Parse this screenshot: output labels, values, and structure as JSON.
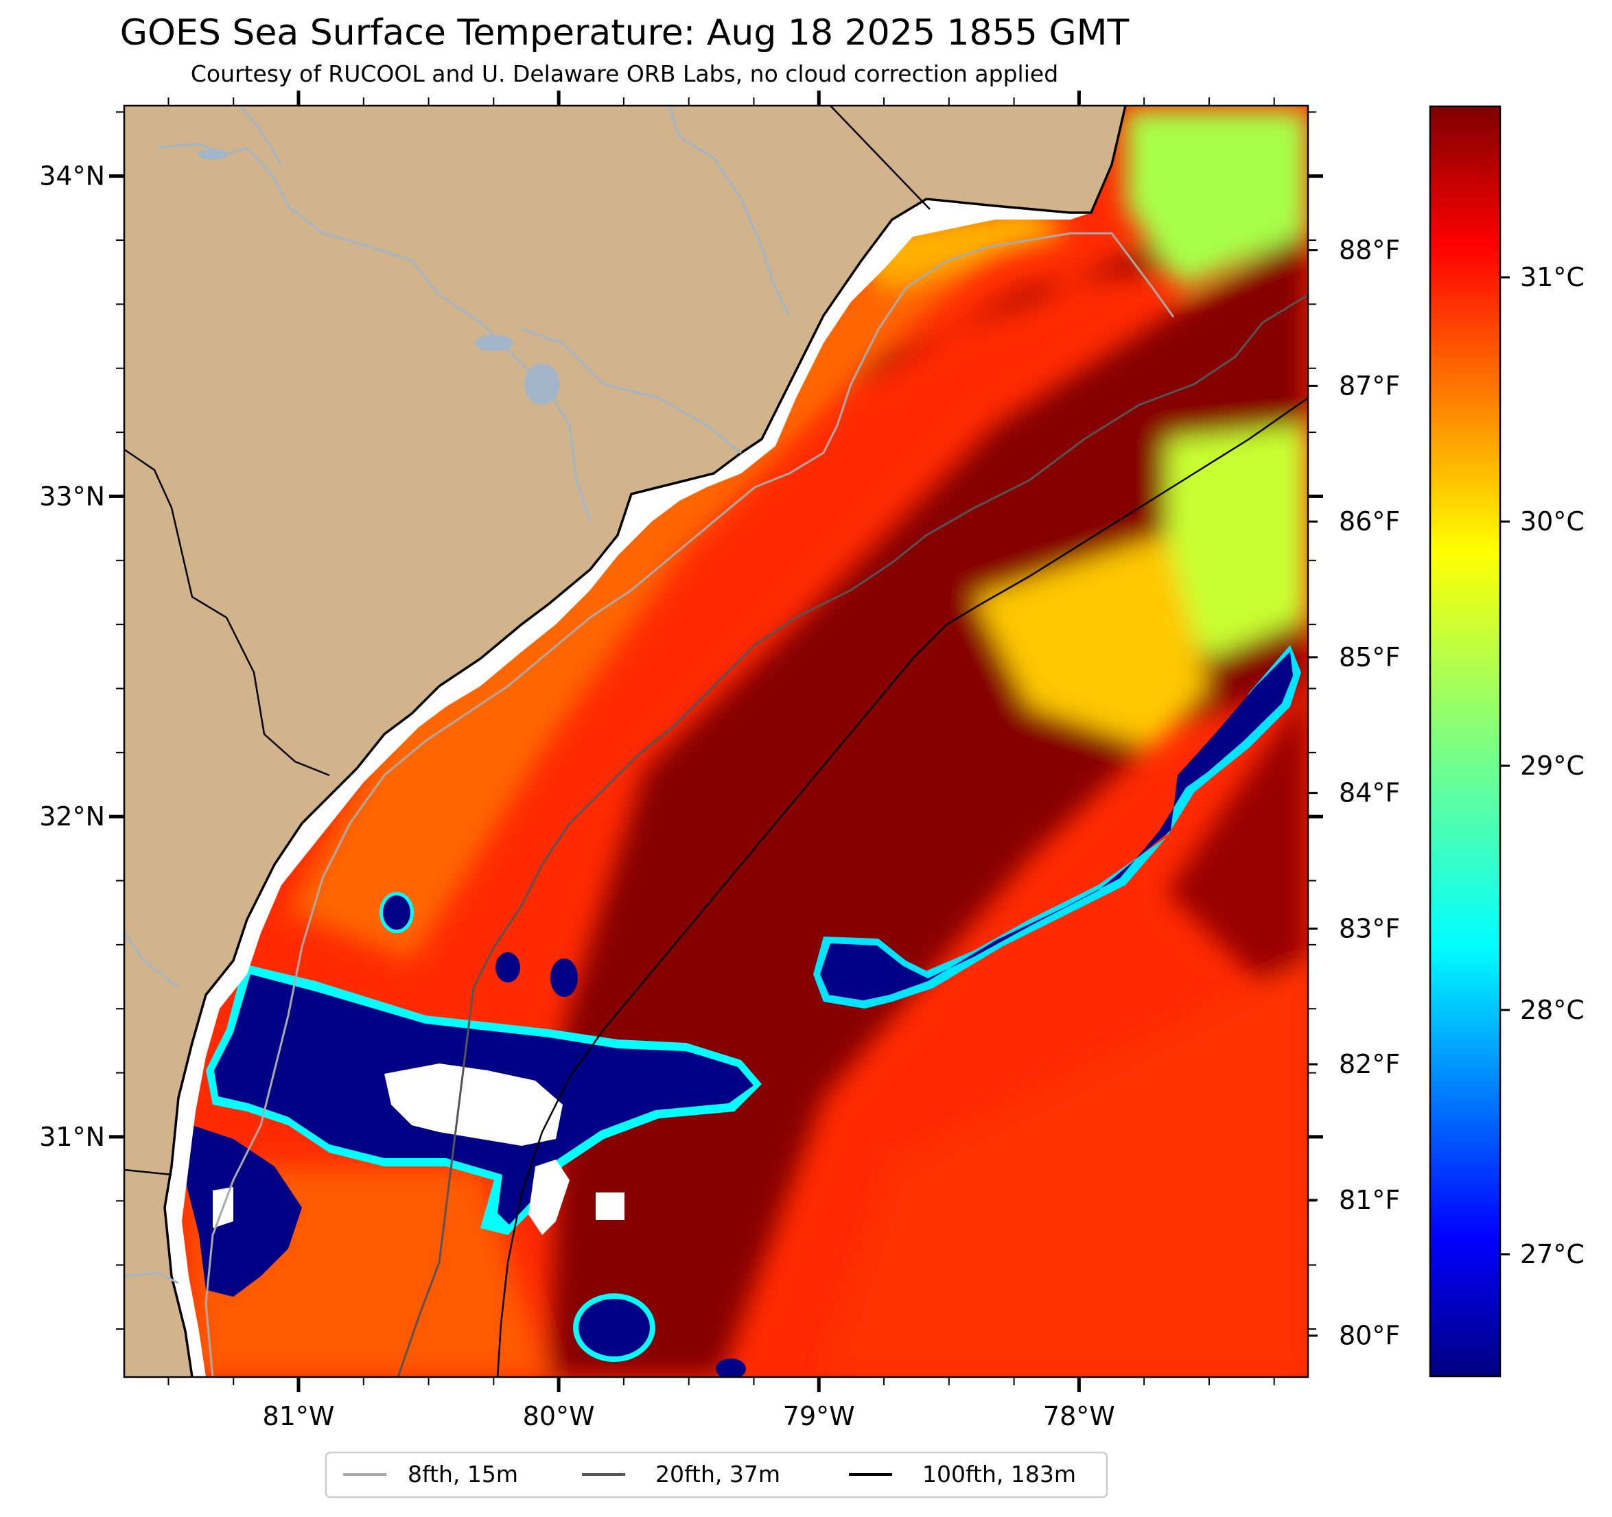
{
  "title": "GOES Sea Surface Temperature: Aug 18 2025 1855 GMT",
  "subtitle": "Courtesy of RUCOOL and U. Delaware ORB Labs, no cloud correction applied",
  "map": {
    "lon_range": [
      -81.67,
      -77.12
    ],
    "lat_range": [
      30.25,
      34.22
    ],
    "lat_ticks": [
      {
        "value": 34,
        "label": "34°N"
      },
      {
        "value": 33,
        "label": "33°N"
      },
      {
        "value": 32,
        "label": "32°N"
      },
      {
        "value": 31,
        "label": "31°N"
      }
    ],
    "lon_ticks": [
      {
        "value": -81,
        "label": "81°W"
      },
      {
        "value": -80,
        "label": "80°W"
      },
      {
        "value": -79,
        "label": "79°W"
      },
      {
        "value": -78,
        "label": "78°W"
      }
    ],
    "fahrenheit_ticks": [
      {
        "value": 88,
        "label": "88°F"
      },
      {
        "value": 87,
        "label": "87°F"
      },
      {
        "value": 86,
        "label": "86°F"
      },
      {
        "value": 85,
        "label": "85°F"
      },
      {
        "value": 84,
        "label": "84°F"
      },
      {
        "value": 83,
        "label": "83°F"
      },
      {
        "value": 82,
        "label": "82°F"
      },
      {
        "value": 81,
        "label": "81°F"
      },
      {
        "value": 80,
        "label": "80°F"
      }
    ],
    "land_color": "#d2b48c",
    "river_color": "#a3b5c8"
  },
  "colorbar": {
    "range_c": [
      26.5,
      31.7
    ],
    "ticks": [
      {
        "value": 31,
        "label": "31°C"
      },
      {
        "value": 30,
        "label": "30°C"
      },
      {
        "value": 29,
        "label": "29°C"
      },
      {
        "value": 28,
        "label": "28°C"
      },
      {
        "value": 27,
        "label": "27°C"
      }
    ],
    "colormap": "jet"
  },
  "legend": {
    "placement": "bottom-center",
    "items": [
      {
        "label": "8fth, 15m",
        "color": "#aaaaaa"
      },
      {
        "label": "20fth, 37m",
        "color": "#555555"
      },
      {
        "label": "100fth, 183m",
        "color": "#000000"
      }
    ]
  }
}
